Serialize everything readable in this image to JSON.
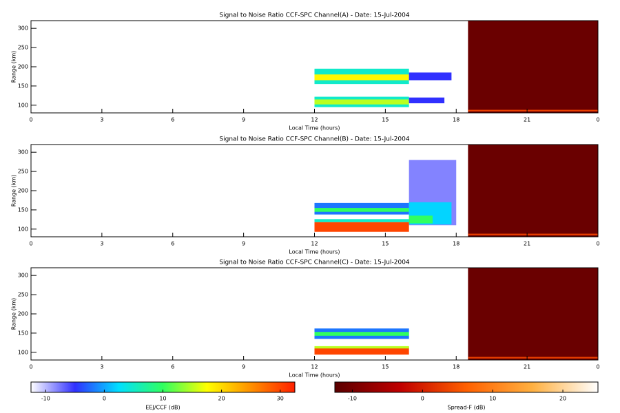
{
  "chart_data": [
    {
      "type": "heatmap",
      "title": "Signal to Noise Ratio CCF-SPC Channel(A) - Date: 15-Jul-2004",
      "xlabel": "Local Time (hours)",
      "ylabel": "Range (km)",
      "xlim": [
        0,
        24
      ],
      "xticks": [
        0,
        3,
        6,
        9,
        12,
        15,
        18,
        21,
        {
          "value": 24,
          "label": "0"
        }
      ],
      "ylim": [
        80,
        320
      ],
      "yticks": [
        100,
        150,
        200,
        250,
        300
      ],
      "echoes": [
        {
          "x": [
            12,
            16
          ],
          "y": [
            155,
            195
          ],
          "value": 5
        },
        {
          "x": [
            12,
            16
          ],
          "y": [
            165,
            180
          ],
          "value": 18
        },
        {
          "x": [
            12,
            16
          ],
          "y": [
            95,
            122
          ],
          "value": 5
        },
        {
          "x": [
            12,
            16
          ],
          "y": [
            102,
            115
          ],
          "value": 15
        },
        {
          "x": [
            16,
            17.8
          ],
          "y": [
            165,
            185
          ],
          "value": -5
        },
        {
          "x": [
            16,
            17.5
          ],
          "y": [
            105,
            120
          ],
          "value": -5
        }
      ],
      "spread_f": [
        {
          "x": [
            18.5,
            24
          ],
          "y": [
            80,
            320
          ],
          "value": -11
        },
        {
          "x": [
            18.5,
            24
          ],
          "y": [
            84,
            88
          ],
          "value": 3
        }
      ]
    },
    {
      "type": "heatmap",
      "title": "Signal to Noise Ratio CCF-SPC Channel(B) - Date: 15-Jul-2004",
      "xlabel": "Local Time (hours)",
      "ylabel": "Range (km)",
      "xlim": [
        0,
        24
      ],
      "xticks": [
        0,
        3,
        6,
        9,
        12,
        15,
        18,
        21,
        {
          "value": 24,
          "label": "0"
        }
      ],
      "ylim": [
        80,
        320
      ],
      "yticks": [
        100,
        150,
        200,
        250,
        300
      ],
      "echoes": [
        {
          "x": [
            12,
            16
          ],
          "y": [
            138,
            168
          ],
          "value": -2
        },
        {
          "x": [
            12,
            16
          ],
          "y": [
            145,
            155
          ],
          "value": 10
        },
        {
          "x": [
            12,
            16
          ],
          "y": [
            118,
            126
          ],
          "value": 5
        },
        {
          "x": [
            12,
            16
          ],
          "y": [
            93,
            118
          ],
          "value": 30
        },
        {
          "x": [
            16,
            18
          ],
          "y": [
            110,
            280
          ],
          "value": -8
        },
        {
          "x": [
            16,
            17.8
          ],
          "y": [
            112,
            170
          ],
          "value": 2
        },
        {
          "x": [
            16,
            17
          ],
          "y": [
            115,
            135
          ],
          "value": 10
        }
      ],
      "spread_f": [
        {
          "x": [
            18.5,
            24
          ],
          "y": [
            80,
            320
          ],
          "value": -11
        },
        {
          "x": [
            18.5,
            24
          ],
          "y": [
            84,
            88
          ],
          "value": 3
        }
      ]
    },
    {
      "type": "heatmap",
      "title": "Signal to Noise Ratio CCF-SPC Channel(C) - Date: 15-Jul-2004",
      "xlabel": "Local Time (hours)",
      "ylabel": "Range (km)",
      "xlim": [
        0,
        24
      ],
      "xticks": [
        0,
        3,
        6,
        9,
        12,
        15,
        18,
        21,
        {
          "value": 24,
          "label": "0"
        }
      ],
      "ylim": [
        80,
        320
      ],
      "yticks": [
        100,
        150,
        200,
        250,
        300
      ],
      "echoes": [
        {
          "x": [
            12,
            16
          ],
          "y": [
            135,
            162
          ],
          "value": -2
        },
        {
          "x": [
            12,
            16
          ],
          "y": [
            143,
            153
          ],
          "value": 10
        },
        {
          "x": [
            12,
            16
          ],
          "y": [
            94,
            115
          ],
          "value": 30
        },
        {
          "x": [
            12,
            16
          ],
          "y": [
            110,
            116
          ],
          "value": 15
        }
      ],
      "spread_f": [
        {
          "x": [
            18.5,
            24
          ],
          "y": [
            80,
            320
          ],
          "value": -11
        },
        {
          "x": [
            18.5,
            24
          ],
          "y": [
            84,
            88
          ],
          "value": 3
        }
      ]
    },
    {
      "type": "colorbar",
      "label": "EEJ/CCF (dB)",
      "lim": [
        -12.5,
        32.5
      ],
      "ticks": [
        -10,
        0,
        10,
        20,
        30
      ],
      "colors": [
        "#ffffff",
        "#3030ff",
        "#00e0ff",
        "#30ff60",
        "#ffff00",
        "#ff9000",
        "#ff2000"
      ]
    },
    {
      "type": "colorbar",
      "label": "Spread-F (dB)",
      "lim": [
        -12.5,
        25
      ],
      "ticks": [
        -10,
        0,
        10,
        20
      ],
      "colors": [
        "#5a0000",
        "#c00000",
        "#ff6000",
        "#ffb040",
        "#ffffff"
      ]
    }
  ]
}
